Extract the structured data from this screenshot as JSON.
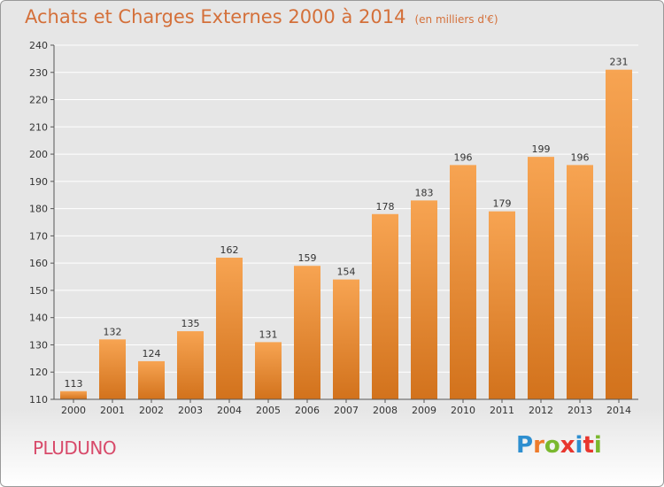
{
  "header": {
    "title": "Achats et Charges Externes 2000 à 2014",
    "subtitle": "(en milliers d'€)"
  },
  "footer": {
    "commune": "PLUDUNO",
    "brand": "Proxiti"
  },
  "colors": {
    "bar_light": "#f7a452",
    "bar_dark": "#d2721c",
    "grid": "#ffffff",
    "axis": "#555555",
    "title": "#d4703a",
    "commune": "#d84a6a",
    "brand_letters": [
      "#2e8fd0",
      "#ee7b2b",
      "#7ab82e",
      "#e8362e",
      "#2e8fd0",
      "#e8362e",
      "#7ab82e"
    ]
  },
  "chart_data": {
    "type": "bar",
    "title": "Achats et Charges Externes 2000 à 2014",
    "subtitle": "(en milliers d'€)",
    "categories": [
      "2000",
      "2001",
      "2002",
      "2003",
      "2004",
      "2005",
      "2006",
      "2007",
      "2008",
      "2009",
      "2010",
      "2011",
      "2012",
      "2013",
      "2014"
    ],
    "values": [
      113,
      132,
      124,
      135,
      162,
      131,
      159,
      154,
      178,
      183,
      196,
      179,
      199,
      196,
      231
    ],
    "ylim": [
      110,
      240
    ],
    "yticks": [
      110,
      120,
      130,
      140,
      150,
      160,
      170,
      180,
      190,
      200,
      210,
      220,
      230,
      240
    ],
    "grid": true,
    "data_labels": true,
    "legend": "none"
  }
}
